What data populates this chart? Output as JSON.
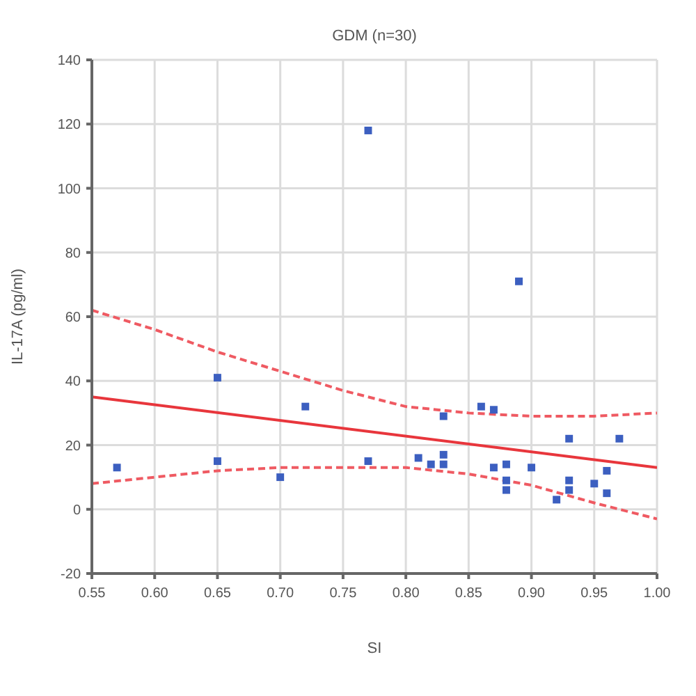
{
  "chart_data": {
    "type": "scatter",
    "title": "GDM (n=30)",
    "xlabel": "SI",
    "ylabel": "IL-17A (pg/ml)",
    "xlim": [
      0.55,
      1
    ],
    "xticks": [
      0.55,
      {
        "value": 0.6,
        "label": "0.60"
      },
      0.65,
      {
        "value": 0.7,
        "label": "0.70"
      },
      0.75,
      {
        "value": 0.8,
        "label": "0.80"
      },
      0.85,
      {
        "value": 0.9,
        "label": "0.90"
      },
      0.95,
      {
        "value": 1,
        "label": "1.00"
      }
    ],
    "ylim": [
      -20,
      140
    ],
    "yticks": [
      -20,
      0,
      20,
      40,
      60,
      80,
      100,
      120,
      140
    ],
    "grid": true,
    "series": [
      {
        "color": "#3c5fc0",
        "marker": "square",
        "x": [
          0.57,
          0.65,
          0.65,
          0.7,
          0.72,
          0.77,
          0.77,
          0.81,
          0.82,
          0.83,
          0.83,
          0.83,
          0.86,
          0.87,
          0.87,
          0.88,
          0.88,
          0.88,
          0.89,
          0.9,
          0.92,
          0.93,
          0.93,
          0.93,
          0.95,
          0.96,
          0.96,
          0.97
        ],
        "values": [
          13,
          41,
          15,
          10,
          32,
          118,
          15,
          16,
          14,
          17,
          14,
          29,
          32,
          31,
          13,
          14,
          9,
          6,
          71,
          13,
          3,
          22,
          9,
          6,
          8,
          12,
          5,
          22
        ]
      },
      {
        "type": "line",
        "color": "#e8363c",
        "line_style": "solid",
        "x": [
          0.55,
          1
        ],
        "values": [
          35,
          13
        ]
      },
      {
        "type": "line",
        "color": "#ef5a62",
        "line_style": "dashed",
        "x": [
          0.55,
          0.6,
          0.65,
          0.7,
          0.75,
          0.8,
          0.85,
          0.9,
          0.95,
          1
        ],
        "values": [
          62,
          56,
          49,
          43,
          37,
          32,
          30,
          29,
          29,
          30
        ]
      },
      {
        "type": "line",
        "color": "#ef5a62",
        "line_style": "dashed",
        "x": [
          0.55,
          0.6,
          0.65,
          0.7,
          0.75,
          0.8,
          0.85,
          0.9,
          0.95,
          1
        ],
        "values": [
          8,
          10,
          12,
          13,
          13,
          13,
          11,
          7.5,
          2,
          -3
        ]
      }
    ]
  }
}
